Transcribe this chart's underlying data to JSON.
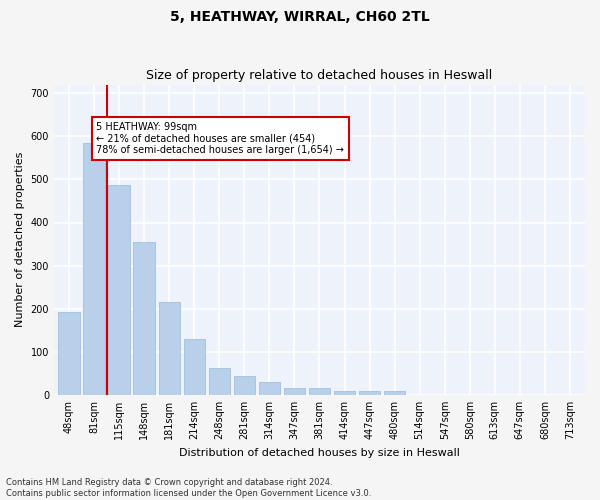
{
  "title": "5, HEATHWAY, WIRRAL, CH60 2TL",
  "subtitle": "Size of property relative to detached houses in Heswall",
  "xlabel": "Distribution of detached houses by size in Heswall",
  "ylabel": "Number of detached properties",
  "categories": [
    "48sqm",
    "81sqm",
    "115sqm",
    "148sqm",
    "181sqm",
    "214sqm",
    "248sqm",
    "281sqm",
    "314sqm",
    "347sqm",
    "381sqm",
    "414sqm",
    "447sqm",
    "480sqm",
    "514sqm",
    "547sqm",
    "580sqm",
    "613sqm",
    "647sqm",
    "680sqm",
    "713sqm"
  ],
  "values": [
    193,
    585,
    487,
    355,
    215,
    130,
    63,
    45,
    30,
    15,
    15,
    8,
    10,
    8,
    0,
    0,
    0,
    0,
    0,
    0,
    0
  ],
  "bar_color": "#b8d0ea",
  "bar_edge_color": "#9ab8d8",
  "property_line_x": 1.5,
  "annotation_text": "5 HEATHWAY: 99sqm\n← 21% of detached houses are smaller (454)\n78% of semi-detached houses are larger (1,654) →",
  "annotation_box_color": "#ffffff",
  "annotation_box_edge": "#cc0000",
  "vline_color": "#cc0000",
  "footnote1": "Contains HM Land Registry data © Crown copyright and database right 2024.",
  "footnote2": "Contains public sector information licensed under the Open Government Licence v3.0.",
  "ylim": [
    0,
    720
  ],
  "yticks": [
    0,
    100,
    200,
    300,
    400,
    500,
    600,
    700
  ],
  "bg_color": "#eef2fb",
  "grid_color": "#ffffff",
  "fig_bg_color": "#f5f5f5",
  "title_fontsize": 10,
  "subtitle_fontsize": 9,
  "axis_label_fontsize": 8,
  "tick_fontsize": 7,
  "annotation_fontsize": 7,
  "footnote_fontsize": 6
}
